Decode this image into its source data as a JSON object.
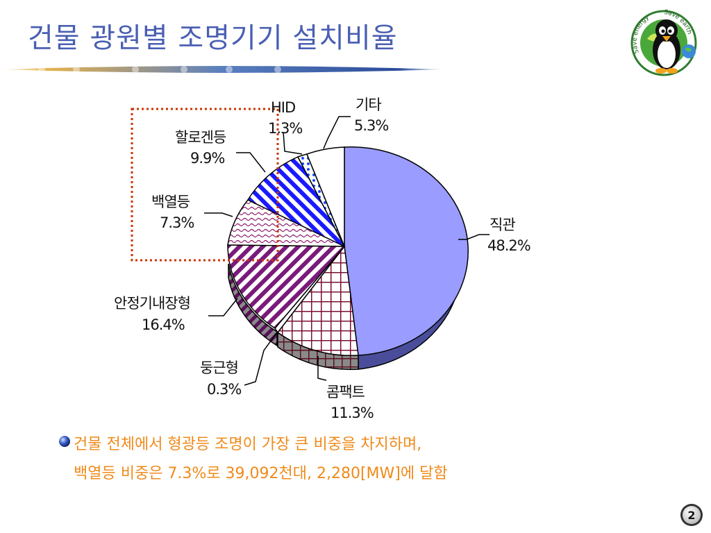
{
  "slide": {
    "title": "건물 광원별 조명기기 설치비율",
    "logo_text_left": "Save energy",
    "logo_text_right": "Save earth",
    "bullet_line1": "건물 전체에서 형광등 조명이 가장 큰 비중을 차지하며,",
    "bullet_line2": "백열등 비중은 7.3%로 39,092천대, 2,280[MW]에 달함",
    "page_number": "2",
    "title_color": "#4a5fb3",
    "text_color": "#f08a1a"
  },
  "chart_data": {
    "type": "pie",
    "title": "",
    "slices": [
      {
        "name": "직관",
        "label": "48.2%",
        "value": 48.2,
        "color": "#9a9cff"
      },
      {
        "name": "콤팩트",
        "label": "11.3%",
        "value": 11.3,
        "color": "#7a1030"
      },
      {
        "name": "둥근형",
        "label": "0.3%",
        "value": 0.3,
        "color": "#ffffff"
      },
      {
        "name": "안정기내장형",
        "label": "16.4%",
        "value": 16.4,
        "color": "#7a1a7a"
      },
      {
        "name": "백열등",
        "label": "7.3%",
        "value": 7.3,
        "color": "#8a1a6a"
      },
      {
        "name": "할로겐등",
        "label": "9.9%",
        "value": 9.9,
        "color": "#1a1aff"
      },
      {
        "name": "HID",
        "label": "1.3%",
        "value": 1.3,
        "color": "#1a4aff"
      },
      {
        "name": "기타",
        "label": "5.3%",
        "value": 5.3,
        "color": "#ffffff"
      }
    ],
    "highlight_box": {
      "color": "#cc3300",
      "style": "dotted",
      "covers": [
        "할로겐등",
        "백열등"
      ]
    }
  }
}
